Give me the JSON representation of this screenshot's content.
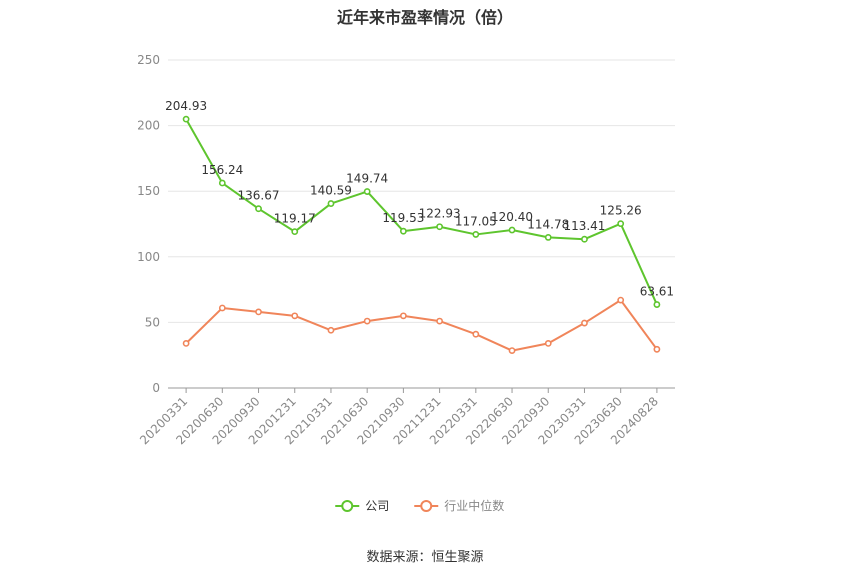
{
  "chart_data": {
    "type": "line",
    "title": "近年来市盈率情况（倍）",
    "categories": [
      "20200331",
      "20200630",
      "20200930",
      "20201231",
      "20210331",
      "20210630",
      "20210930",
      "20211231",
      "20220331",
      "20220630",
      "20220930",
      "20230331",
      "20230630",
      "20240828"
    ],
    "ylim": [
      0,
      250
    ],
    "yticks": [
      0,
      50,
      100,
      150,
      200,
      250
    ],
    "grid": true,
    "legend_position": "bottom",
    "series": [
      {
        "name": "公司",
        "color": "#5ec52e",
        "show_labels": true,
        "labels": [
          "204.93",
          "156.24",
          "136.67",
          "119.17",
          "140.59",
          "149.74",
          "119.53",
          "122.93",
          "117.05",
          "120.40",
          "114.78",
          "113.41",
          "125.26",
          "63.61"
        ],
        "values": [
          204.93,
          156.24,
          136.67,
          119.17,
          140.59,
          149.74,
          119.53,
          122.93,
          117.05,
          120.4,
          114.78,
          113.41,
          125.26,
          63.61
        ]
      },
      {
        "name": "行业中位数",
        "color": "#f0855a",
        "show_labels": false,
        "values": [
          34,
          61,
          58,
          55,
          44,
          51,
          55,
          51,
          41,
          28.5,
          34,
          49.5,
          67,
          29.5
        ]
      }
    ]
  },
  "footer": {
    "source": "数据来源：恒生聚源"
  }
}
